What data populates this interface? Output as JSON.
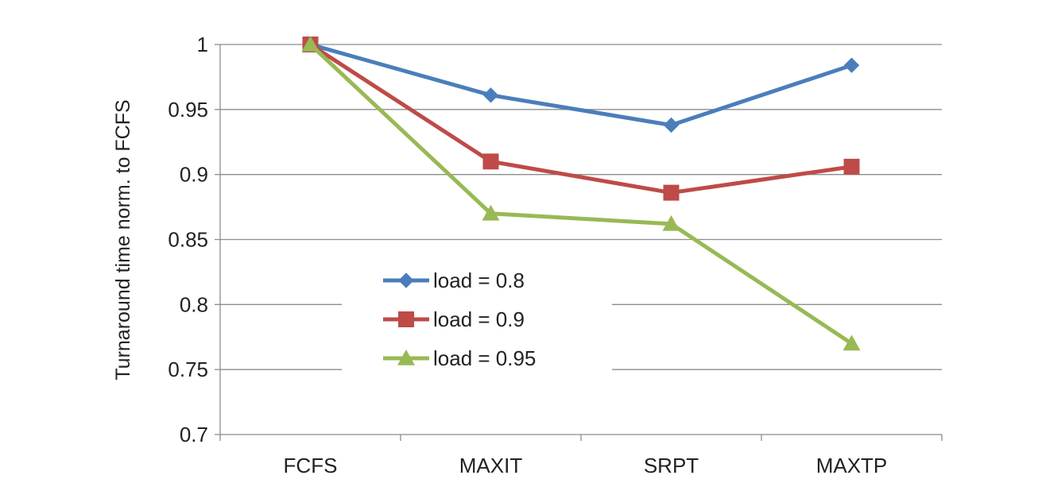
{
  "chart_data": {
    "type": "line",
    "title": "",
    "xlabel": "",
    "ylabel": "Turnaround time norm. to FCFS",
    "categories": [
      "FCFS",
      "MAXIT",
      "SRPT",
      "MAXTP"
    ],
    "ylim": [
      0.7,
      1.0
    ],
    "yticks": [
      0.7,
      0.75,
      0.8,
      0.85,
      0.9,
      0.95,
      1
    ],
    "ytick_labels": [
      "0.7",
      "0.75",
      "0.8",
      "0.85",
      "0.9",
      "0.95",
      "1"
    ],
    "grid": true,
    "legend_position": "center",
    "series": [
      {
        "name": "load = 0.8",
        "values": [
          1.0,
          0.961,
          0.938,
          0.984
        ],
        "color": "#4a7ebb",
        "marker": "diamond"
      },
      {
        "name": "load = 0.9",
        "values": [
          1.0,
          0.91,
          0.886,
          0.906
        ],
        "color": "#be4b48",
        "marker": "square"
      },
      {
        "name": "load = 0.95",
        "values": [
          1.0,
          0.87,
          0.862,
          0.77
        ],
        "color": "#98b954",
        "marker": "triangle"
      }
    ]
  }
}
